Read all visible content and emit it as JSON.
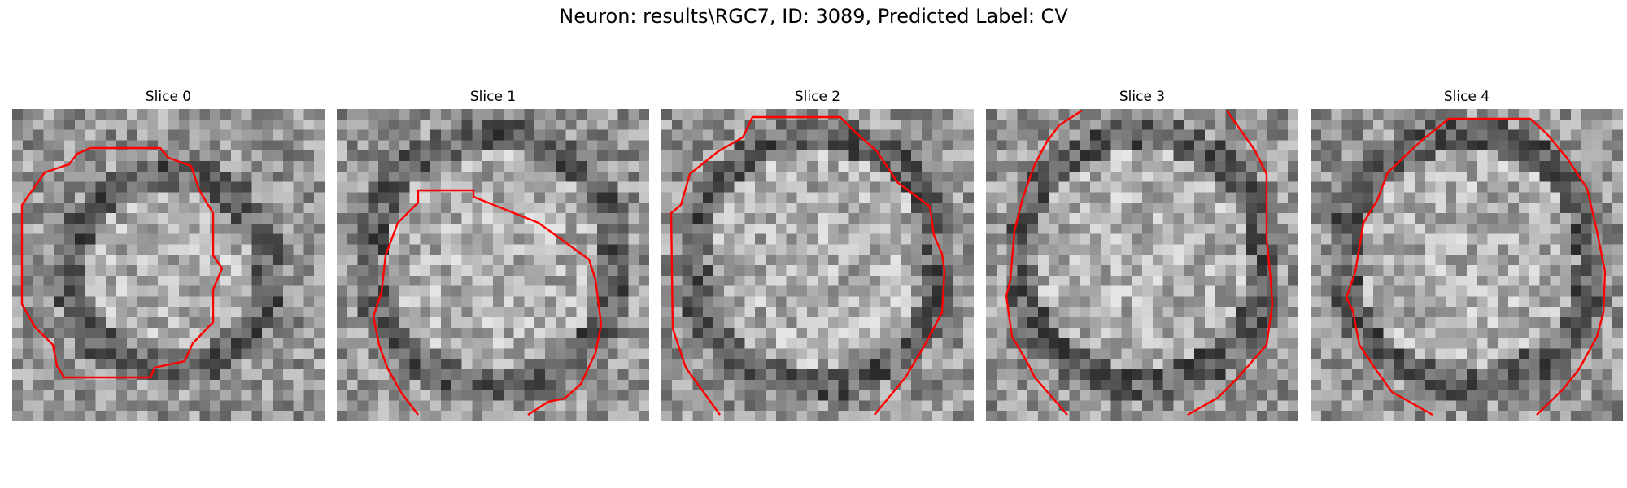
{
  "figure": {
    "title": "Neuron: results\\RGC7, ID: 3089, Predicted Label: CV"
  },
  "panels": [
    {
      "title": "Slice 0"
    },
    {
      "title": "Slice 1"
    },
    {
      "title": "Slice 2"
    },
    {
      "title": "Slice 3"
    },
    {
      "title": "Slice 4"
    }
  ],
  "colors": {
    "contour": "#ff0000",
    "background": "#ffffff",
    "image_colormap": "grayscale"
  }
}
